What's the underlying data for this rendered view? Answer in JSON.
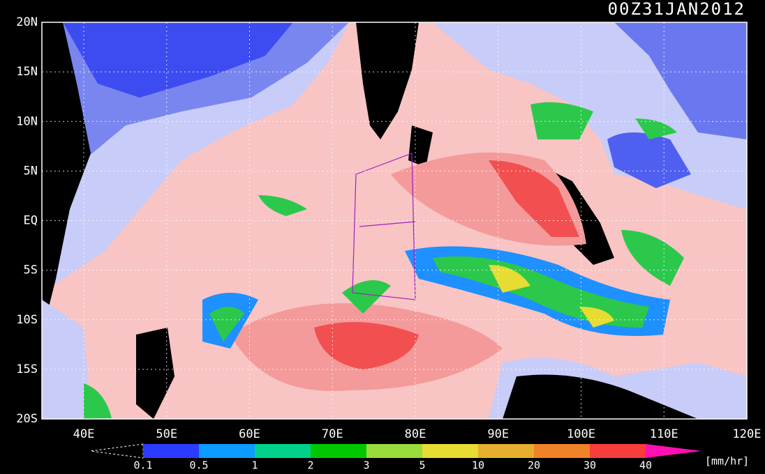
{
  "title": "00Z31JAN2012",
  "lat_labels": [
    "20N",
    "15N",
    "10N",
    "5N",
    "EQ",
    "5S",
    "10S",
    "15S",
    "20S"
  ],
  "lon_labels": [
    "40E",
    "50E",
    "60E",
    "70E",
    "80E",
    "90E",
    "100E",
    "110E",
    "120E"
  ],
  "colorbar": {
    "labels": [
      "0.1",
      "0.5",
      "1",
      "2",
      "3",
      "5",
      "10",
      "20",
      "30",
      "40"
    ],
    "colors": [
      "#2c3cff",
      "#0c9cff",
      "#00d28c",
      "#00c800",
      "#9adc3c",
      "#e6dc32",
      "#e6af2d",
      "#f08228",
      "#fa3c3c",
      "#ff10b0"
    ],
    "unit": "[mm/hr]"
  }
}
